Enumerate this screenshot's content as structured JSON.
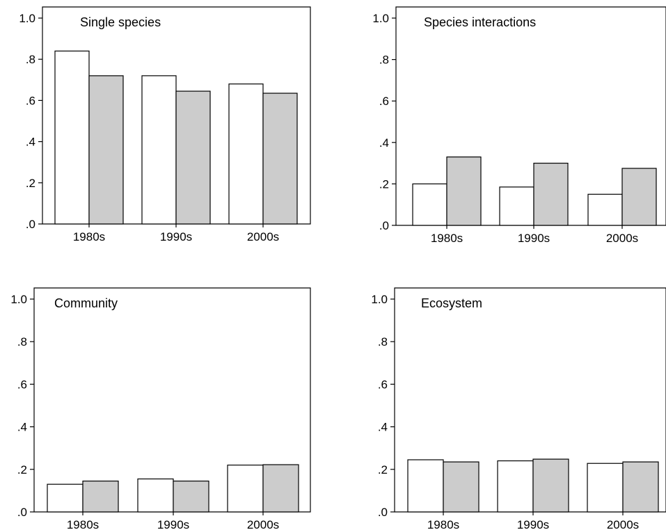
{
  "chart_data": [
    {
      "type": "bar",
      "title": "Single species",
      "categories": [
        "1980s",
        "1990s",
        "2000s"
      ],
      "series": [
        {
          "values": [
            0.84,
            0.72,
            0.68
          ],
          "color": "#ffffff"
        },
        {
          "values": [
            0.72,
            0.645,
            0.635
          ],
          "color": "#cccccc"
        }
      ],
      "ylim": [
        0,
        1.0
      ],
      "yticks": [
        ".0",
        ".2",
        ".4",
        ".6",
        ".8",
        "1.0"
      ],
      "xlabel": "",
      "ylabel": ""
    },
    {
      "type": "bar",
      "title": "Species interactions",
      "categories": [
        "1980s",
        "1990s",
        "2000s"
      ],
      "series": [
        {
          "values": [
            0.2,
            0.185,
            0.15
          ],
          "color": "#ffffff"
        },
        {
          "values": [
            0.33,
            0.3,
            0.275
          ],
          "color": "#cccccc"
        }
      ],
      "ylim": [
        0,
        1.0
      ],
      "yticks": [
        ".0",
        ".2",
        ".4",
        ".6",
        ".8",
        "1.0"
      ],
      "xlabel": "",
      "ylabel": ""
    },
    {
      "type": "bar",
      "title": "Community",
      "categories": [
        "1980s",
        "1990s",
        "2000s"
      ],
      "series": [
        {
          "values": [
            0.13,
            0.155,
            0.22
          ],
          "color": "#ffffff"
        },
        {
          "values": [
            0.145,
            0.145,
            0.222
          ],
          "color": "#cccccc"
        }
      ],
      "ylim": [
        0,
        1.0
      ],
      "yticks": [
        ".0",
        ".2",
        ".4",
        ".6",
        ".8",
        "1.0"
      ],
      "xlabel": "",
      "ylabel": ""
    },
    {
      "type": "bar",
      "title": "Ecosystem",
      "categories": [
        "1980s",
        "1990s",
        "2000s"
      ],
      "series": [
        {
          "values": [
            0.245,
            0.24,
            0.228
          ],
          "color": "#ffffff"
        },
        {
          "values": [
            0.235,
            0.248,
            0.235
          ],
          "color": "#cccccc"
        }
      ],
      "ylim": [
        0,
        1.0
      ],
      "yticks": [
        ".0",
        ".2",
        ".4",
        ".6",
        ".8",
        "1.0"
      ],
      "xlabel": "",
      "ylabel": ""
    }
  ]
}
